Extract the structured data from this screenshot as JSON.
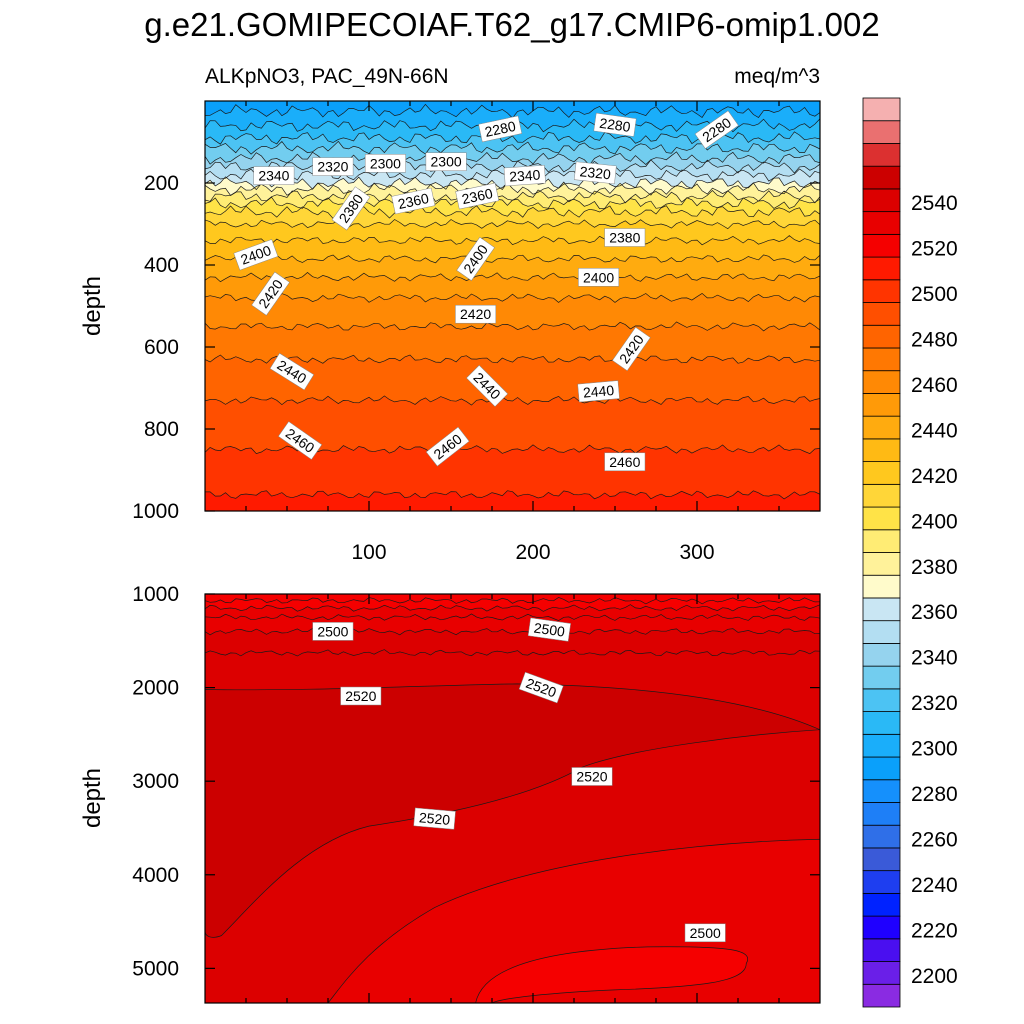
{
  "chart_data": {
    "type": "heatmap",
    "title": "g.e21.GOMIPECOIAF.T62_g17.CMIP6-omip1.002",
    "subtitle_left": "ALKpNO3, PAC_49N-66N",
    "subtitle_right": "meq/m^3",
    "colorbar": {
      "levels": [
        2200,
        2210,
        2220,
        2230,
        2240,
        2250,
        2260,
        2270,
        2280,
        2290,
        2300,
        2310,
        2320,
        2330,
        2340,
        2350,
        2360,
        2370,
        2380,
        2390,
        2400,
        2410,
        2420,
        2430,
        2440,
        2450,
        2460,
        2470,
        2480,
        2490,
        2500,
        2510,
        2520,
        2530,
        2540,
        2550
      ],
      "tick_labels": [
        "2200",
        "2220",
        "2240",
        "2260",
        "2280",
        "2300",
        "2320",
        "2340",
        "2360",
        "2380",
        "2400",
        "2420",
        "2440",
        "2460",
        "2480",
        "2500",
        "2520",
        "2540"
      ],
      "colors": [
        "#8a2be2",
        "#6a1fe8",
        "#4a0ff0",
        "#1f00ff",
        "#0022ff",
        "#1e3ef0",
        "#3a5ad8",
        "#2f6fe8",
        "#1e7ff7",
        "#1590fc",
        "#0aa0fb",
        "#1aaefa",
        "#2ab9f6",
        "#4cc3f3",
        "#72cdef",
        "#95d3ee",
        "#b3def2",
        "#c9e6f3",
        "#fffbcb",
        "#fff29a",
        "#ffec74",
        "#ffe347",
        "#ffd638",
        "#ffc81e",
        "#ffba14",
        "#ffab0f",
        "#ff9a08",
        "#ff8905",
        "#ff7802",
        "#ff6400",
        "#ff4f00",
        "#ff3400",
        "#ff1a00",
        "#f50000",
        "#e80000",
        "#dc0000",
        "#cc0000",
        "#dc3030",
        "#ea7070",
        "#f5b0b0"
      ]
    },
    "panels": [
      {
        "xlabel": "",
        "ylabel": "depth",
        "ylim": [
          1000,
          0
        ],
        "xlim": [
          0,
          375
        ],
        "x_ticks": [
          100,
          200,
          300
        ],
        "y_ticks": [
          200,
          400,
          600,
          800,
          1000
        ],
        "contours": [
          {
            "depth": 25,
            "value": 2270
          },
          {
            "depth": 60,
            "value": 2280
          },
          {
            "depth": 90,
            "value": 2290
          },
          {
            "depth": 115,
            "value": 2300
          },
          {
            "depth": 140,
            "value": 2310
          },
          {
            "depth": 160,
            "value": 2320
          },
          {
            "depth": 180,
            "value": 2330
          },
          {
            "depth": 200,
            "value": 2340
          },
          {
            "depth": 215,
            "value": 2350
          },
          {
            "depth": 232,
            "value": 2360
          },
          {
            "depth": 250,
            "value": 2370
          },
          {
            "depth": 270,
            "value": 2380
          },
          {
            "depth": 300,
            "value": 2390
          },
          {
            "depth": 340,
            "value": 2400
          },
          {
            "depth": 385,
            "value": 2410
          },
          {
            "depth": 430,
            "value": 2420
          },
          {
            "depth": 480,
            "value": 2430
          },
          {
            "depth": 550,
            "value": 2440
          },
          {
            "depth": 630,
            "value": 2450
          },
          {
            "depth": 730,
            "value": 2460
          },
          {
            "depth": 850,
            "value": 2470
          },
          {
            "depth": 960,
            "value": 2480
          }
        ],
        "surface_value": 2265,
        "contour_labels": [
          {
            "text": "2280",
            "x": 180,
            "y": 68,
            "angle": -12
          },
          {
            "text": "2280",
            "x": 250,
            "y": 58,
            "angle": 8
          },
          {
            "text": "2280",
            "x": 312,
            "y": 70,
            "angle": -35
          },
          {
            "text": "2340",
            "x": 42,
            "y": 182,
            "angle": 0
          },
          {
            "text": "2320",
            "x": 78,
            "y": 160,
            "angle": 0
          },
          {
            "text": "2300",
            "x": 110,
            "y": 152,
            "angle": 0
          },
          {
            "text": "2300",
            "x": 147,
            "y": 148,
            "angle": 0
          },
          {
            "text": "2340",
            "x": 195,
            "y": 182,
            "angle": -4
          },
          {
            "text": "2320",
            "x": 238,
            "y": 175,
            "angle": 6
          },
          {
            "text": "2380",
            "x": 89,
            "y": 262,
            "angle": -55
          },
          {
            "text": "2360",
            "x": 127,
            "y": 244,
            "angle": -12
          },
          {
            "text": "2360",
            "x": 166,
            "y": 232,
            "angle": -12
          },
          {
            "text": "2380",
            "x": 256,
            "y": 333,
            "angle": 0
          },
          {
            "text": "2400",
            "x": 31,
            "y": 375,
            "angle": -20
          },
          {
            "text": "2400",
            "x": 165,
            "y": 385,
            "angle": -55
          },
          {
            "text": "2400",
            "x": 240,
            "y": 430,
            "angle": 0
          },
          {
            "text": "2420",
            "x": 40,
            "y": 470,
            "angle": -55
          },
          {
            "text": "2420",
            "x": 165,
            "y": 520,
            "angle": 0
          },
          {
            "text": "2420",
            "x": 260,
            "y": 605,
            "angle": -55
          },
          {
            "text": "2440",
            "x": 53,
            "y": 660,
            "angle": 32
          },
          {
            "text": "2440",
            "x": 172,
            "y": 695,
            "angle": 45
          },
          {
            "text": "2440",
            "x": 240,
            "y": 708,
            "angle": -5
          },
          {
            "text": "2460",
            "x": 58,
            "y": 828,
            "angle": 35
          },
          {
            "text": "2460",
            "x": 148,
            "y": 843,
            "angle": -38
          },
          {
            "text": "2460",
            "x": 256,
            "y": 880,
            "angle": 0
          }
        ]
      },
      {
        "xlabel": "",
        "ylabel": "depth",
        "ylim": [
          5370,
          1000
        ],
        "xlim": [
          0,
          375
        ],
        "x_ticks": [
          100,
          200,
          300
        ],
        "y_ticks": [
          1000,
          2000,
          3000,
          4000,
          5000
        ],
        "fill_levels": [
          {
            "value": 2490
          },
          {
            "value": 2500
          },
          {
            "value": 2510
          },
          {
            "value": 2520
          },
          {
            "value": 2525
          }
        ],
        "contour_labels": [
          {
            "text": "2500",
            "x": 78,
            "y": 1400,
            "angle": 0
          },
          {
            "text": "2500",
            "x": 210,
            "y": 1380,
            "angle": 8
          },
          {
            "text": "2520",
            "x": 95,
            "y": 2090,
            "angle": 0
          },
          {
            "text": "2520",
            "x": 205,
            "y": 2000,
            "angle": 20
          },
          {
            "text": "2520",
            "x": 236,
            "y": 2950,
            "angle": 0
          },
          {
            "text": "2520",
            "x": 140,
            "y": 3400,
            "angle": 5
          },
          {
            "text": "2500",
            "x": 305,
            "y": 4620,
            "angle": 0
          }
        ]
      }
    ]
  }
}
